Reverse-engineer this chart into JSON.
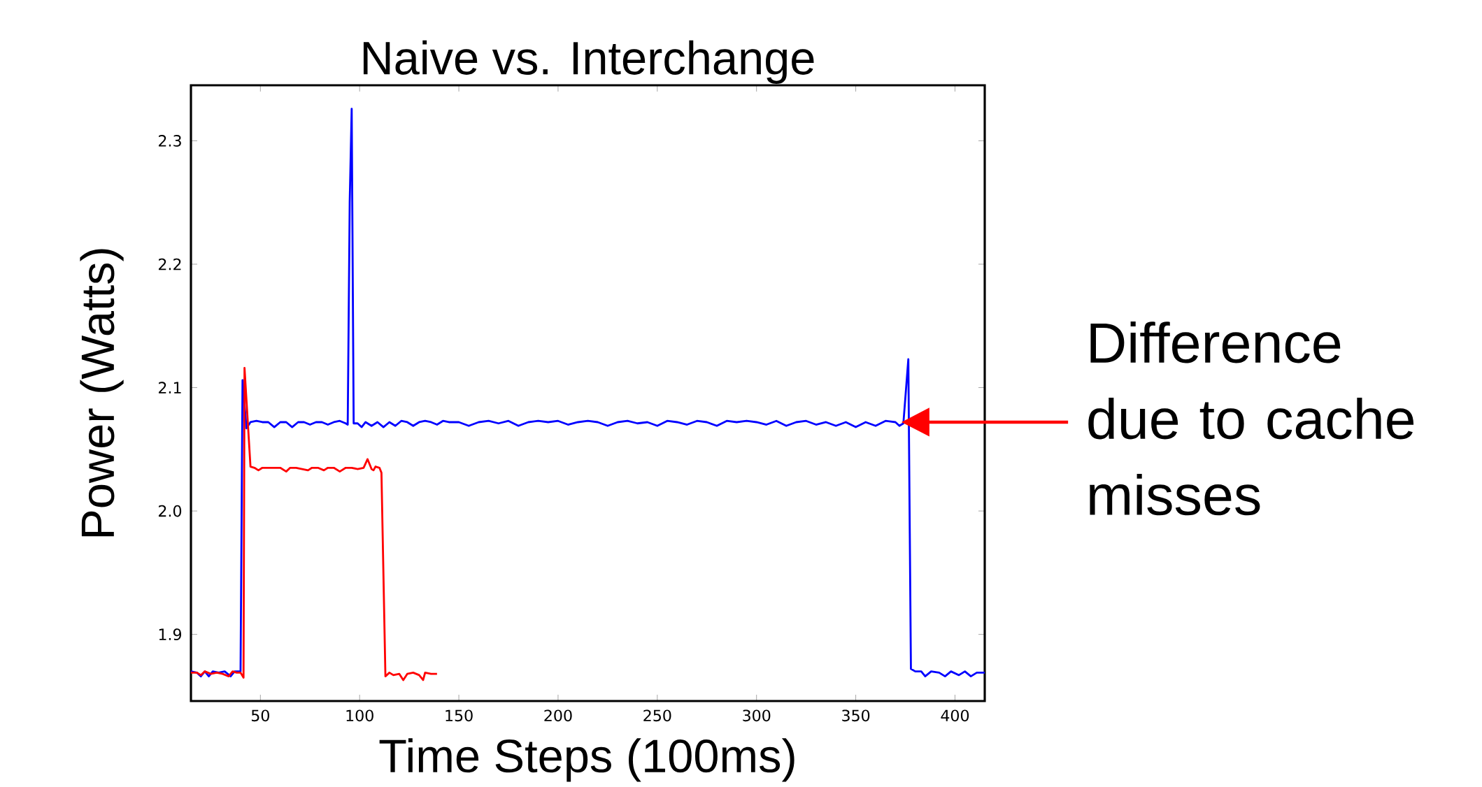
{
  "chart_data": {
    "type": "line",
    "title": "Naive vs. Interchange",
    "xlabel": "Time Steps (100ms)",
    "ylabel": "Power (Watts)",
    "xlim": [
      15,
      415
    ],
    "ylim": [
      1.846,
      2.345
    ],
    "xticks": [
      50,
      100,
      150,
      200,
      250,
      300,
      350,
      400
    ],
    "yticks": [
      1.9,
      {
        "value": 2.0,
        "label": "2.0"
      },
      2.1,
      2.2,
      2.3
    ],
    "grid": false,
    "series": [
      {
        "color": "#0000ff",
        "x": [
          15,
          18,
          20,
          22,
          24,
          26,
          29,
          32,
          35,
          37,
          40,
          41,
          43,
          45,
          48,
          51,
          54,
          57,
          60,
          63,
          66,
          69,
          72,
          75,
          78,
          81,
          84,
          87,
          90,
          93,
          94,
          95,
          96,
          97,
          99,
          101,
          103,
          106,
          109,
          112,
          115,
          118,
          121,
          124,
          127,
          130,
          133,
          136,
          139,
          142,
          145,
          150,
          155,
          160,
          165,
          170,
          175,
          180,
          185,
          190,
          195,
          200,
          205,
          210,
          215,
          220,
          225,
          230,
          235,
          240,
          245,
          250,
          255,
          260,
          265,
          270,
          275,
          280,
          285,
          290,
          295,
          300,
          305,
          310,
          315,
          320,
          325,
          330,
          335,
          340,
          345,
          350,
          355,
          360,
          365,
          370,
          372,
          374,
          376.5,
          377.8,
          380,
          383,
          385,
          388,
          392,
          395,
          398,
          402,
          405,
          408,
          411,
          415
        ],
        "values": [
          1.87,
          1.869,
          1.866,
          1.87,
          1.866,
          1.87,
          1.869,
          1.87,
          1.866,
          1.87,
          1.87,
          2.106,
          2.067,
          2.072,
          2.073,
          2.072,
          2.072,
          2.068,
          2.072,
          2.072,
          2.068,
          2.072,
          2.072,
          2.07,
          2.072,
          2.072,
          2.07,
          2.072,
          2.073,
          2.071,
          2.07,
          2.25,
          2.326,
          2.071,
          2.071,
          2.068,
          2.072,
          2.069,
          2.072,
          2.068,
          2.072,
          2.069,
          2.073,
          2.072,
          2.069,
          2.072,
          2.073,
          2.072,
          2.07,
          2.073,
          2.072,
          2.072,
          2.069,
          2.072,
          2.073,
          2.071,
          2.073,
          2.069,
          2.072,
          2.073,
          2.072,
          2.073,
          2.07,
          2.072,
          2.073,
          2.072,
          2.069,
          2.072,
          2.073,
          2.071,
          2.072,
          2.069,
          2.073,
          2.072,
          2.07,
          2.073,
          2.072,
          2.069,
          2.073,
          2.072,
          2.073,
          2.072,
          2.07,
          2.073,
          2.069,
          2.072,
          2.073,
          2.07,
          2.072,
          2.069,
          2.072,
          2.068,
          2.072,
          2.069,
          2.073,
          2.072,
          2.069,
          2.071,
          2.123,
          1.872,
          1.87,
          1.87,
          1.866,
          1.87,
          1.869,
          1.866,
          1.87,
          1.867,
          1.87,
          1.866,
          1.869,
          1.869
        ]
      },
      {
        "color": "#ff0000",
        "x": [
          15,
          18,
          20,
          22,
          25,
          28,
          31,
          34,
          36,
          38,
          40,
          41.5,
          42,
          45,
          47,
          49,
          51,
          54,
          57,
          60,
          63,
          65,
          68,
          71,
          74,
          76,
          79,
          82,
          84,
          87,
          90,
          93,
          96,
          99,
          102,
          104,
          106,
          107,
          108,
          110,
          111,
          113,
          115,
          117,
          120,
          122,
          124,
          127,
          130,
          132,
          133,
          136,
          139
        ],
        "values": [
          1.869,
          1.869,
          1.867,
          1.87,
          1.868,
          1.869,
          1.868,
          1.866,
          1.87,
          1.869,
          1.869,
          1.865,
          2.116,
          2.036,
          2.035,
          2.033,
          2.035,
          2.035,
          2.035,
          2.035,
          2.032,
          2.035,
          2.035,
          2.034,
          2.033,
          2.035,
          2.035,
          2.033,
          2.035,
          2.035,
          2.032,
          2.035,
          2.035,
          2.034,
          2.035,
          2.042,
          2.034,
          2.033,
          2.036,
          2.035,
          2.031,
          1.866,
          1.869,
          1.867,
          1.868,
          1.863,
          1.868,
          1.869,
          1.867,
          1.863,
          1.869,
          1.868,
          1.868
        ]
      }
    ],
    "annotations": [
      "Difference due to cache misses"
    ]
  }
}
